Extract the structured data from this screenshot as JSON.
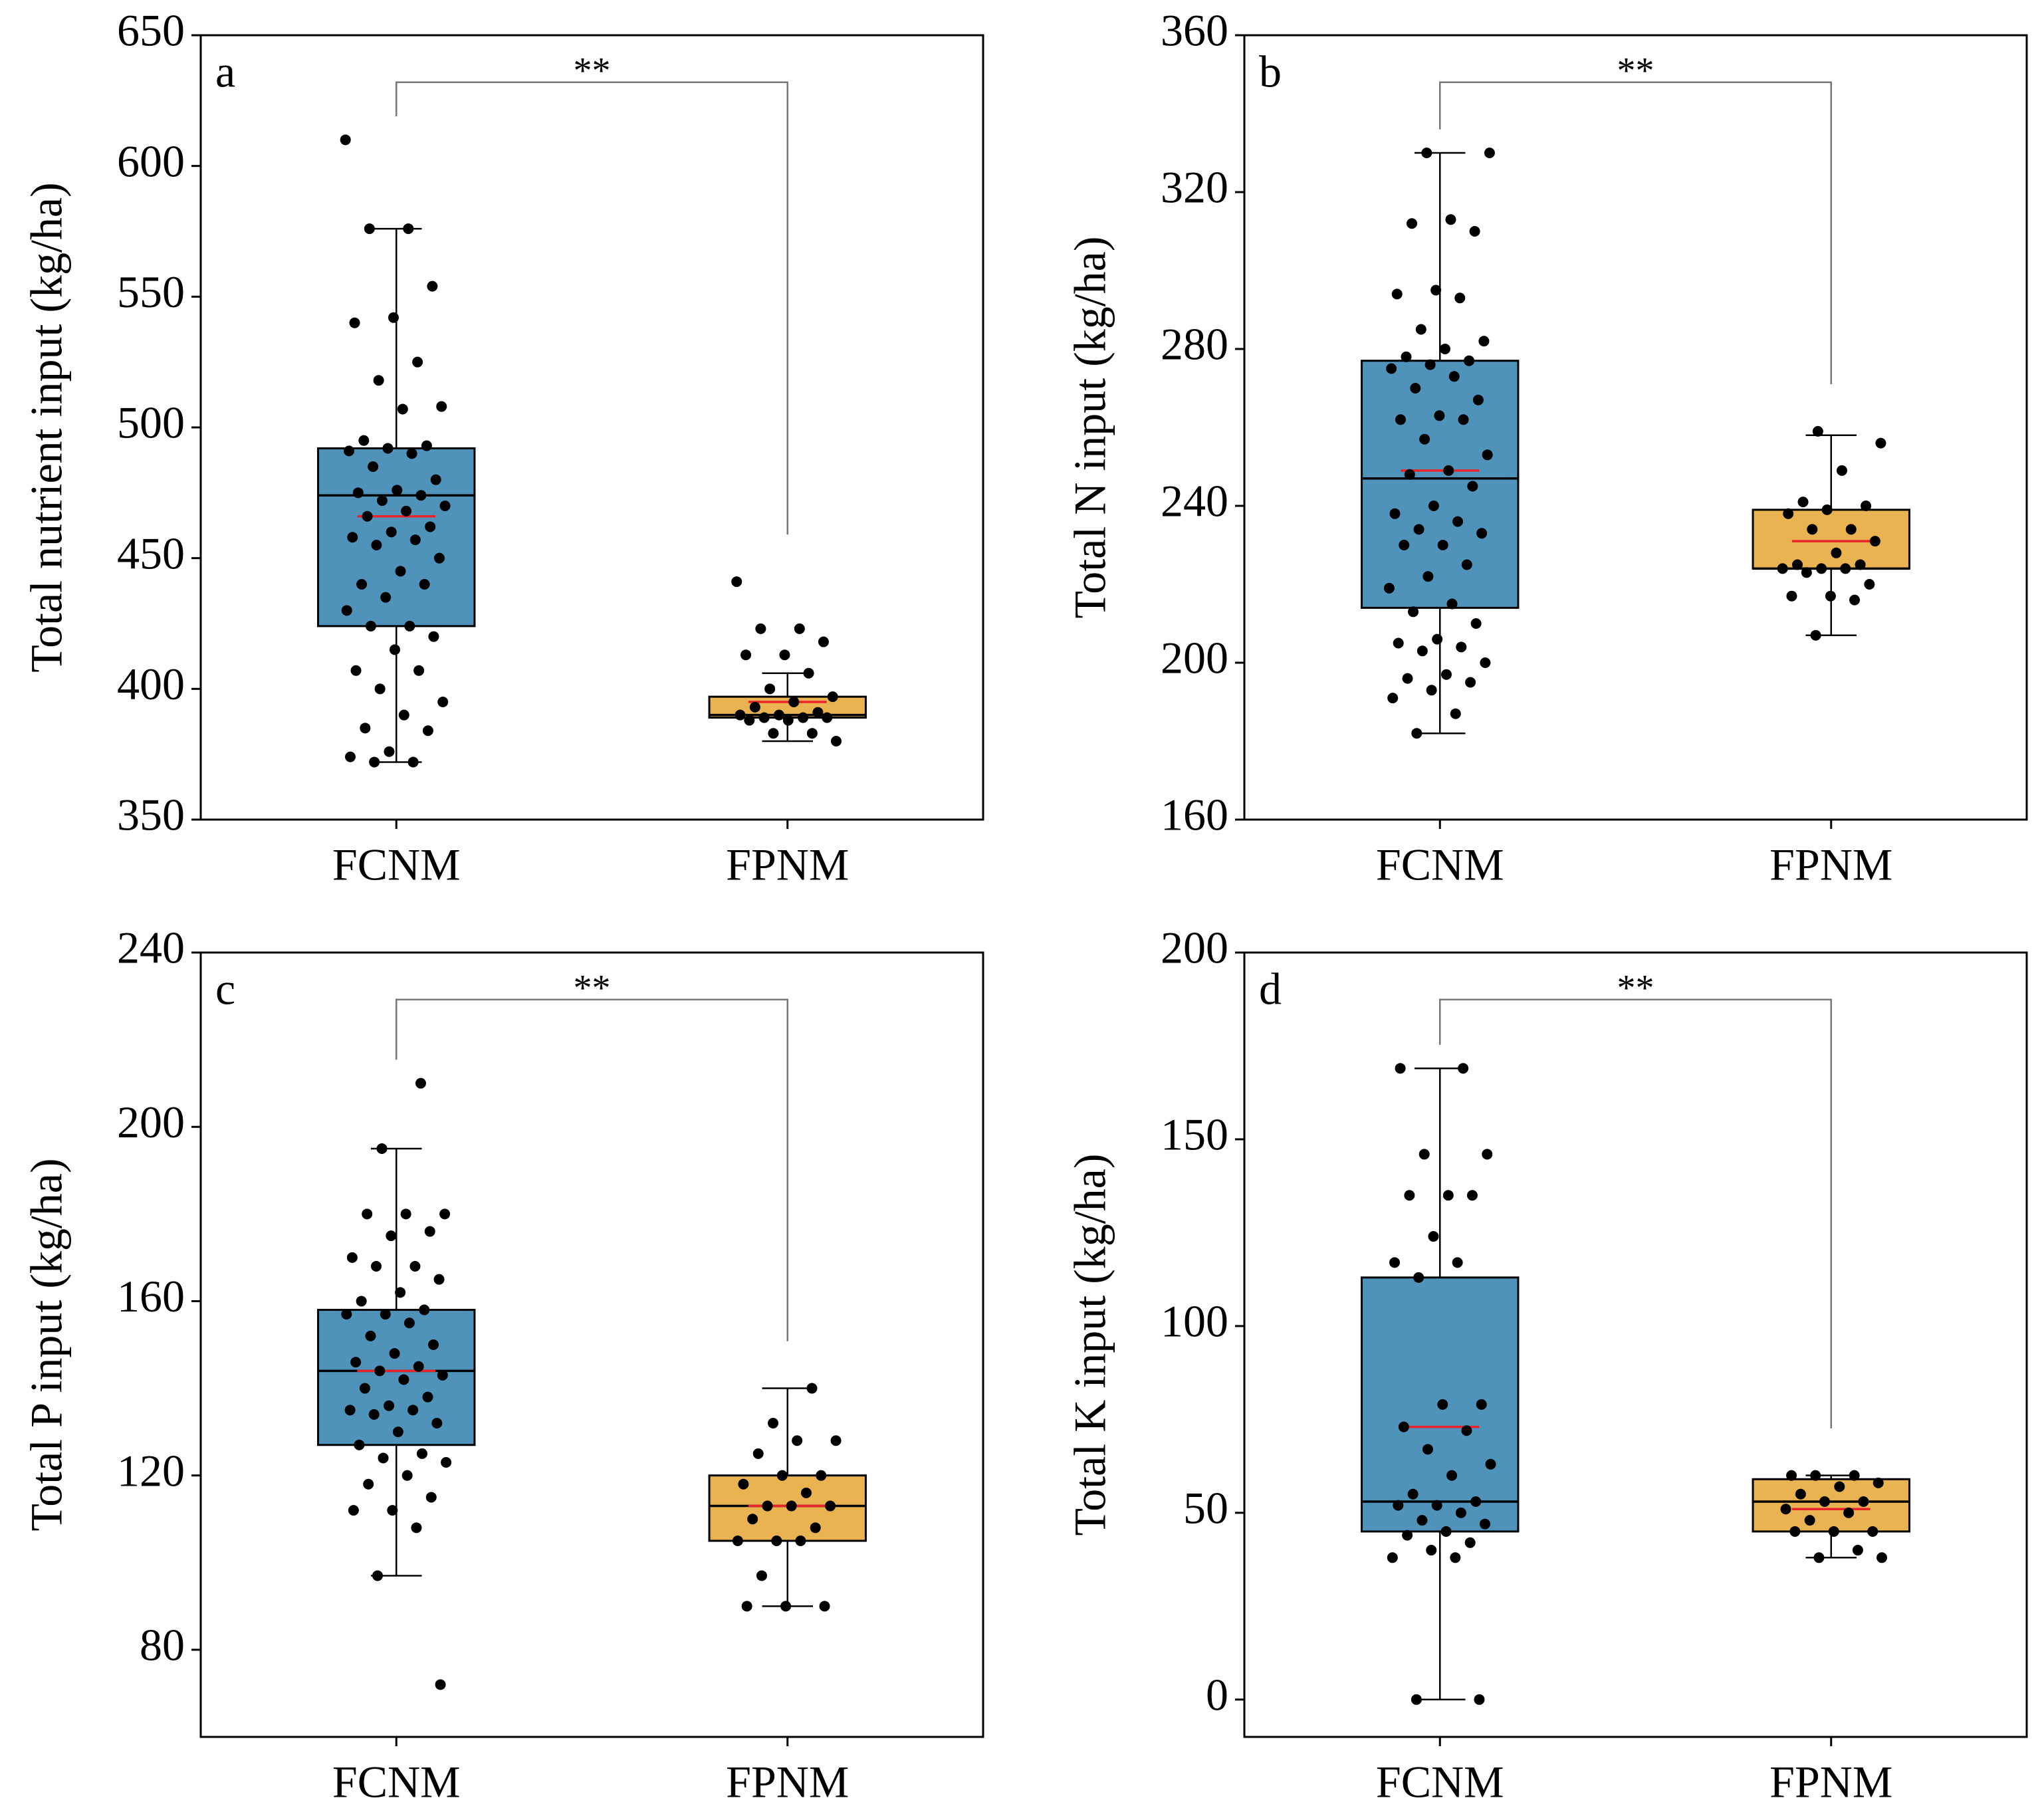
{
  "chart_data": [
    {
      "type": "box",
      "label": "a",
      "ylabel": "Total nutrient input (kg/ha)",
      "annotation": "**",
      "categories": [
        "FCNM",
        "FPNM"
      ],
      "ylim": [
        350,
        650
      ],
      "yticks": [
        350,
        400,
        450,
        500,
        550,
        600,
        650
      ],
      "boxes": [
        {
          "color": "#4f93bb",
          "whislo": 372,
          "q1": 424,
          "med": 474,
          "q3": 492,
          "whishi": 576,
          "mean": 466,
          "points": [
            610,
            576,
            576,
            554,
            542,
            540,
            525,
            518,
            508,
            507,
            495,
            493,
            492,
            491,
            490,
            485,
            480,
            476,
            475,
            474,
            472,
            470,
            468,
            466,
            462,
            460,
            458,
            457,
            455,
            450,
            445,
            440,
            440,
            435,
            430,
            424,
            424,
            420,
            415,
            407,
            407,
            400,
            395,
            390,
            385,
            384,
            376,
            374,
            372,
            372
          ]
        },
        {
          "color": "#e9b351",
          "whislo": 380,
          "q1": 389,
          "med": 390,
          "q3": 397,
          "whishi": 406,
          "mean": 395,
          "points": [
            441,
            423,
            423,
            418,
            413,
            413,
            406,
            400,
            397,
            395,
            393,
            391,
            390,
            390,
            389,
            389,
            389,
            388,
            388,
            383,
            383,
            380
          ]
        }
      ]
    },
    {
      "type": "box",
      "label": "b",
      "ylabel": "Total N input (kg/ha)",
      "annotation": "**",
      "categories": [
        "FCNM",
        "FPNM"
      ],
      "ylim": [
        160,
        360
      ],
      "yticks": [
        160,
        200,
        240,
        280,
        320,
        360
      ],
      "boxes": [
        {
          "color": "#4f93bb",
          "whislo": 182,
          "q1": 214,
          "med": 247,
          "q3": 277,
          "whishi": 330,
          "mean": 249,
          "points": [
            330,
            330,
            313,
            312,
            310,
            295,
            294,
            293,
            285,
            282,
            280,
            278,
            277,
            276,
            275,
            273,
            270,
            267,
            263,
            262,
            262,
            257,
            253,
            249,
            248,
            245,
            240,
            238,
            236,
            234,
            233,
            230,
            230,
            225,
            222,
            219,
            215,
            213,
            210,
            206,
            205,
            204,
            203,
            200,
            197,
            196,
            195,
            193,
            191,
            187,
            182
          ]
        },
        {
          "color": "#e9b351",
          "whislo": 207,
          "q1": 224,
          "med": 224,
          "q3": 239,
          "whishi": 258,
          "mean": 231,
          "points": [
            259,
            256,
            249,
            241,
            240,
            239,
            238,
            234,
            234,
            231,
            228,
            225,
            225,
            224,
            224,
            224,
            223,
            220,
            217,
            217,
            216,
            207
          ]
        }
      ]
    },
    {
      "type": "box",
      "label": "c",
      "ylabel": "Total P input (kg/ha)",
      "annotation": "**",
      "categories": [
        "FCNM",
        "FPNM"
      ],
      "ylim": [
        60,
        240
      ],
      "yticks": [
        80,
        120,
        160,
        200,
        240
      ],
      "boxes": [
        {
          "color": "#4f93bb",
          "whislo": 97,
          "q1": 127,
          "med": 144,
          "q3": 158,
          "whishi": 195,
          "mean": 144,
          "points": [
            210,
            195,
            180,
            180,
            180,
            176,
            175,
            170,
            168,
            168,
            165,
            162,
            160,
            158,
            157,
            157,
            155,
            152,
            150,
            148,
            146,
            145,
            144,
            143,
            142,
            140,
            138,
            136,
            135,
            135,
            134,
            132,
            130,
            127,
            125,
            124,
            123,
            120,
            118,
            115,
            112,
            112,
            108,
            97,
            72
          ]
        },
        {
          "color": "#e9b351",
          "whislo": 90,
          "q1": 105,
          "med": 113,
          "q3": 120,
          "whishi": 140,
          "mean": 113,
          "points": [
            140,
            132,
            128,
            128,
            125,
            120,
            120,
            118,
            116,
            113,
            113,
            113,
            110,
            108,
            105,
            105,
            105,
            97,
            90,
            90,
            90
          ]
        }
      ]
    },
    {
      "type": "box",
      "label": "d",
      "ylabel": "Total K input (kg/ha)",
      "annotation": "**",
      "categories": [
        "FCNM",
        "FPNM"
      ],
      "ylim": [
        -10,
        200
      ],
      "yticks": [
        0,
        50,
        100,
        150,
        200
      ],
      "boxes": [
        {
          "color": "#4f93bb",
          "whislo": 0,
          "q1": 45,
          "med": 53,
          "q3": 113,
          "whishi": 169,
          "mean": 73,
          "points": [
            169,
            169,
            146,
            146,
            135,
            135,
            135,
            124,
            117,
            117,
            113,
            79,
            79,
            73,
            72,
            67,
            63,
            60,
            55,
            53,
            52,
            52,
            50,
            48,
            47,
            45,
            44,
            42,
            40,
            38,
            38,
            0,
            0
          ]
        },
        {
          "color": "#e9b351",
          "whislo": 38,
          "q1": 45,
          "med": 53,
          "q3": 59,
          "whishi": 60,
          "mean": 51,
          "points": [
            60,
            60,
            60,
            58,
            57,
            55,
            53,
            53,
            51,
            50,
            48,
            45,
            45,
            45,
            40,
            38,
            38
          ]
        }
      ]
    }
  ]
}
